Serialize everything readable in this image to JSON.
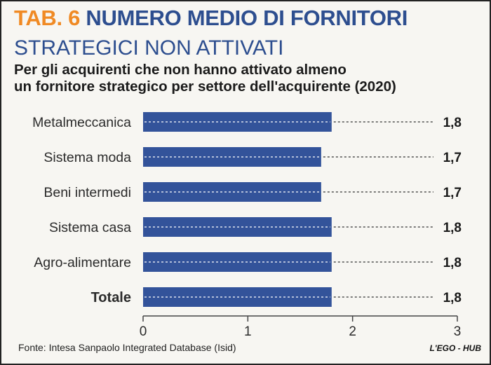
{
  "header": {
    "tab": "TAB. 6",
    "title": "NUMERO MEDIO DI FORNITORI",
    "subtitle": "STRATEGICI NON ATTIVATI",
    "description_line1": "Per gli acquirenti che non hanno attivato almeno",
    "description_line2": "un fornitore strategico per settore dell'acquirente (2020)"
  },
  "footer": {
    "source": "Fonte: Intesa Sanpaolo Integrated Database (Isid)",
    "logo": "L'EGO - HUB"
  },
  "colors": {
    "bar": "#33539a",
    "tab": "#f08a24",
    "title": "#2d4e8f"
  },
  "chart_data": {
    "type": "bar",
    "orientation": "horizontal",
    "categories": [
      "Metalmeccanica",
      "Sistema moda",
      "Beni intermedi",
      "Sistema casa",
      "Agro-alimentare",
      "Totale"
    ],
    "values": [
      1.8,
      1.7,
      1.7,
      1.8,
      1.8,
      1.8
    ],
    "value_labels": [
      "1,8",
      "1,7",
      "1,7",
      "1,8",
      "1,8",
      "1,8"
    ],
    "bold_categories": [
      "Totale"
    ],
    "xlim": [
      0,
      3
    ],
    "xticks": [
      0,
      1,
      2,
      3
    ],
    "xtick_labels": [
      "0",
      "1",
      "2",
      "3"
    ],
    "grid": false
  }
}
